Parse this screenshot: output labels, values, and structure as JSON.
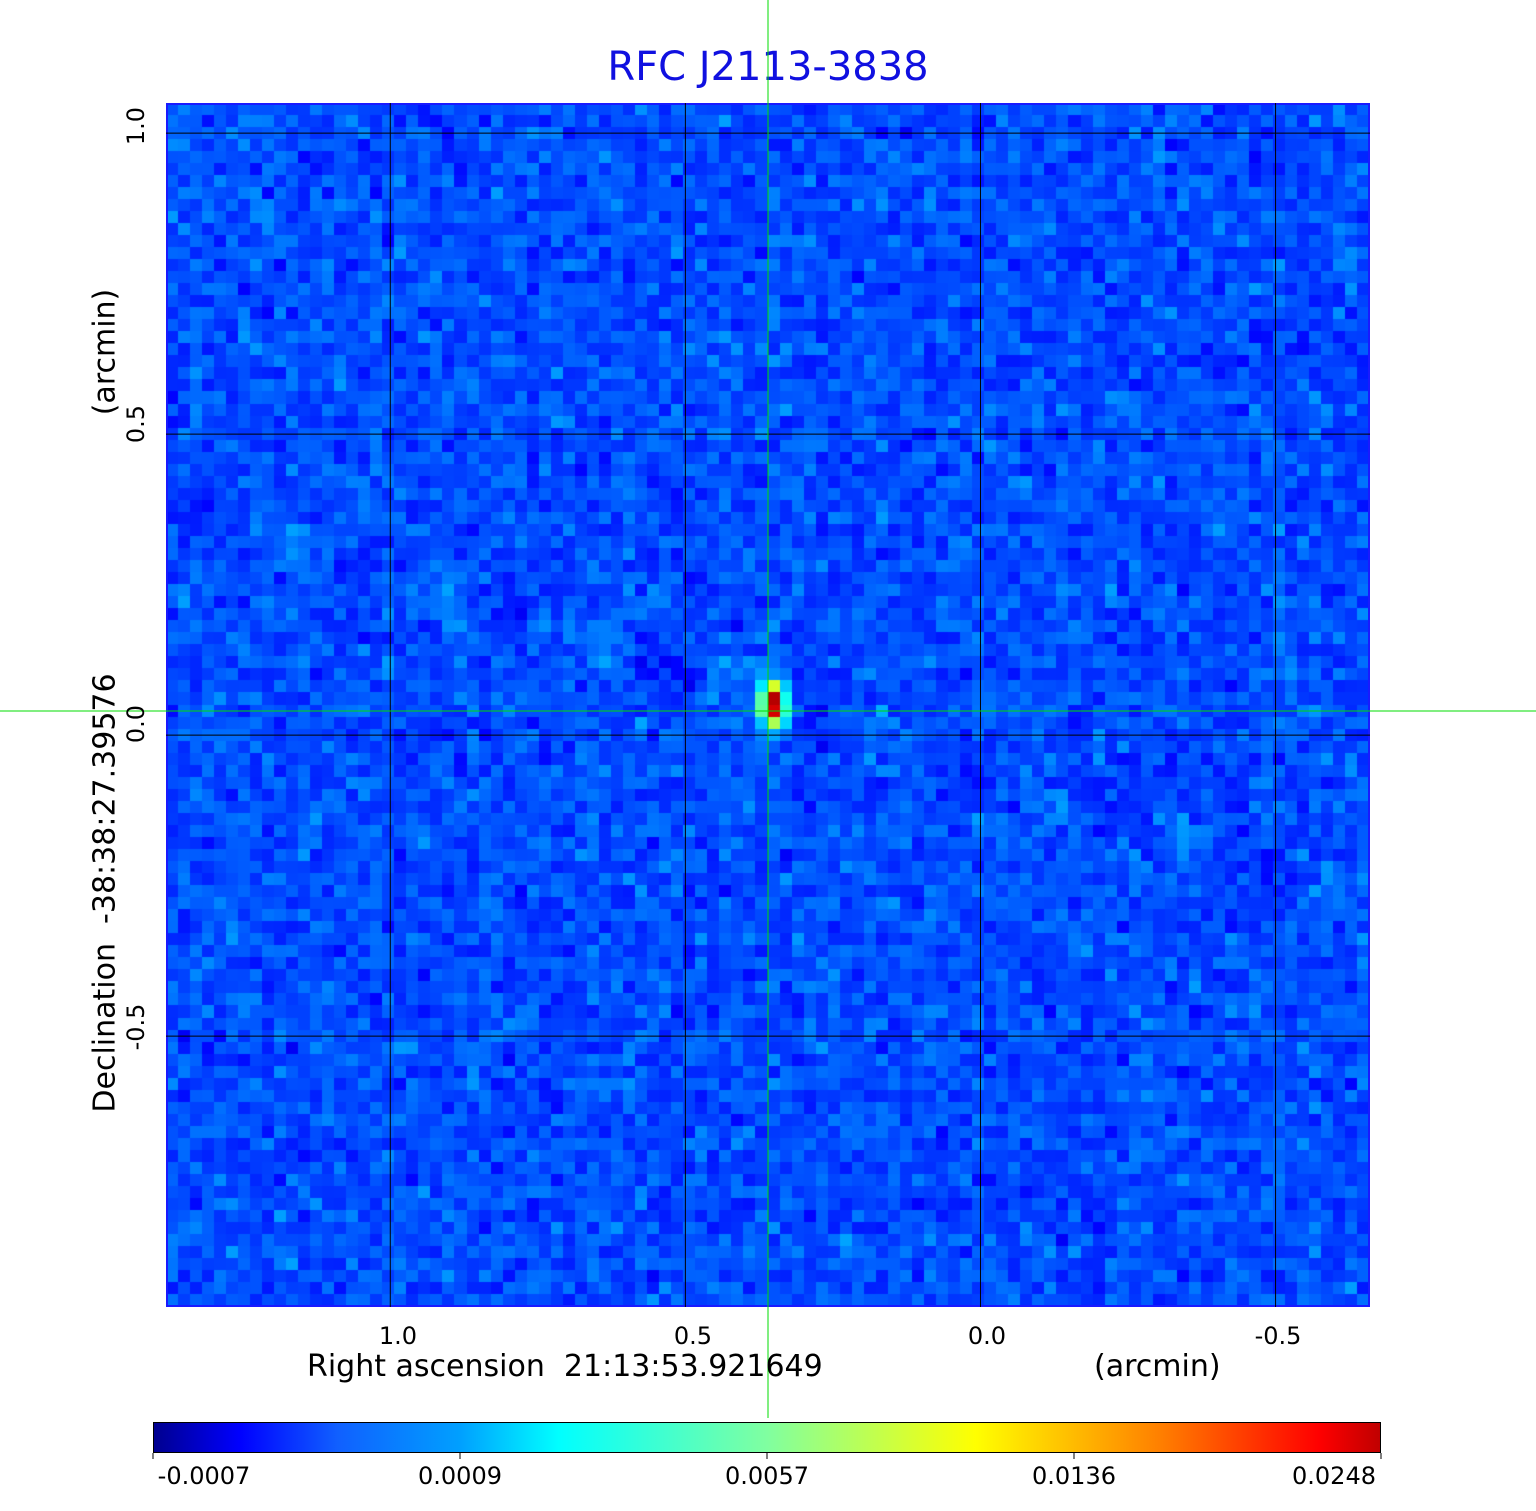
{
  "chart_data": {
    "type": "heatmap",
    "title": "RFC J2113-3838",
    "xlabel": "Right ascension  21:13:53.921649",
    "xunit": "(arcmin)",
    "ylabel": "Declination  -38:38:27.39576",
    "yunit": "(arcmin)",
    "x_ticks": [
      "1.0",
      "0.5",
      "0.0",
      "-0.5"
    ],
    "x_tick_values": [
      1.0,
      0.5,
      0.0,
      -0.5
    ],
    "y_ticks": [
      "1.0",
      "0.5",
      "0.0",
      "-0.5"
    ],
    "y_tick_values": [
      1.0,
      0.5,
      0.0,
      -0.5
    ],
    "xlim": [
      1.38,
      -0.66
    ],
    "ylim": [
      -0.95,
      1.05
    ],
    "grid": true,
    "crosshair": {
      "x": 0.36,
      "y": 0.04,
      "color": "#00dd00"
    },
    "source_peak": {
      "x": 0.36,
      "y": 0.06,
      "value": 0.0248
    },
    "colormap": "jet",
    "colorbar": {
      "ticks": [
        "-0.0007",
        "0.0009",
        "0.0057",
        "0.0136",
        "0.0248"
      ],
      "tick_values": [
        -0.0007,
        0.0009,
        0.0057,
        0.0136,
        0.0248
      ],
      "placement": "bottom"
    },
    "title_color": "#1010e0"
  }
}
